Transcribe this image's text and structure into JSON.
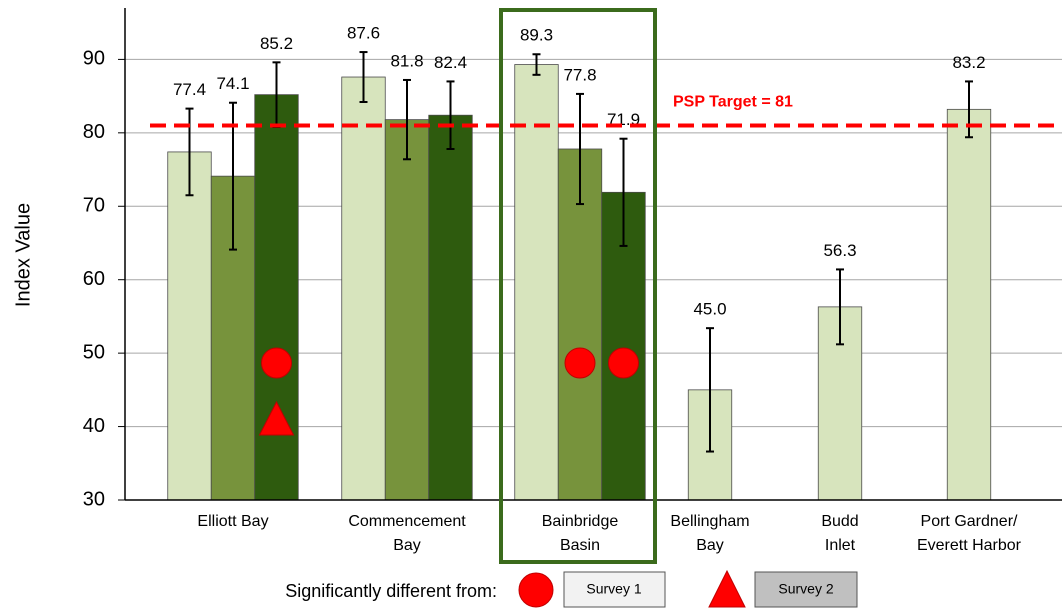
{
  "chart_data": {
    "type": "bar",
    "y_label": "Index Value",
    "categories": [
      "Elliott Bay",
      "Commencement\nBay",
      "Bainbridge\nBasin",
      "Bellingham\nBay",
      "Budd\nInlet",
      "Port Gardner/\nEverett Harbor"
    ],
    "series": [
      {
        "name": "Survey 1",
        "color": "#d7e4bd",
        "values": [
          77.4,
          87.6,
          89.3,
          45.0,
          56.3,
          83.2
        ],
        "value_labels": [
          "77.4",
          "87.6",
          "89.3",
          "45.0",
          "56.3",
          "83.2"
        ],
        "errors": [
          5.9,
          3.4,
          1.4,
          8.4,
          5.1,
          3.8
        ]
      },
      {
        "name": "Survey 2",
        "color": "#77933c",
        "values": [
          74.1,
          81.8,
          77.8,
          null,
          null,
          null
        ],
        "value_labels": [
          "74.1",
          "81.8",
          "77.8",
          null,
          null,
          null
        ],
        "errors": [
          10.0,
          5.4,
          7.5,
          null,
          null,
          null
        ]
      },
      {
        "color": "#2e5b0e",
        "values": [
          85.2,
          82.4,
          71.9,
          null,
          null,
          null
        ],
        "value_labels": [
          "85.2",
          "82.4",
          "71.9",
          null,
          null,
          null
        ],
        "errors": [
          4.4,
          4.6,
          7.3,
          null,
          null,
          null
        ]
      }
    ],
    "ylim": [
      30,
      97
    ],
    "yticks": [
      30,
      40,
      50,
      60,
      70,
      80,
      90
    ],
    "grid": true,
    "target": {
      "value": 81,
      "label": "PSP Target = 81",
      "color": "#ff0000"
    },
    "highlight": 2,
    "significance_label": "Significantly different from:",
    "significance": [
      {
        "category": 0,
        "series": 2,
        "marker": "circle"
      },
      {
        "category": 0,
        "series": 2,
        "marker": "triangle"
      },
      {
        "category": 2,
        "series": 1,
        "marker": "circle"
      },
      {
        "category": 2,
        "series": 2,
        "marker": "circle"
      }
    ]
  }
}
